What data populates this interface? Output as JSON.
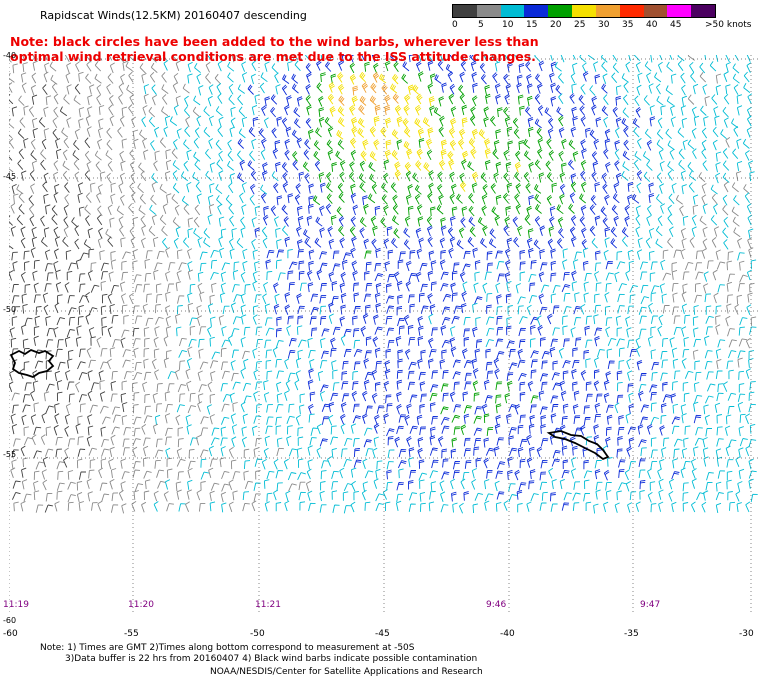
{
  "title": "Rapidscat Winds(12.5KM) 20160407 descending",
  "note_line1": "Note: black circles have been added to the wind barbs, wherever less than",
  "note_line2": "optimal wind retrieval conditions are met due to the ISS attitude changes.",
  "legend": {
    "labels": [
      "0",
      "5",
      "10",
      "15",
      "20",
      "25",
      "30",
      "35",
      "40",
      "45",
      ">50 knots"
    ],
    "colors": [
      "#404040",
      "#8a8a8a",
      "#00bcd4",
      "#0a2ad8",
      "#00a000",
      "#f5e000",
      "#f0a030",
      "#ff2a00",
      "#a05030",
      "#ff00ff",
      "#4b0060"
    ]
  },
  "lat_labels": [
    "-40",
    "-45",
    "-50",
    "-55",
    "-60"
  ],
  "lon_labels": [
    "-60",
    "-55",
    "-50",
    "-45",
    "-40",
    "-35",
    "-30"
  ],
  "times": [
    "11:19",
    "11:20",
    "11:21",
    "9:46",
    "9:47"
  ],
  "footer_line1": "Note: 1) Times are GMT 2)Times along bottom correspond to measurement at -50S",
  "footer_line2": "3)Data buffer is 22 hrs from 20160407 4) Black wind barbs indicate possible contamination",
  "footer_line3": "NOAA/NESDIS/Center for Satellite Applications and Research"
}
